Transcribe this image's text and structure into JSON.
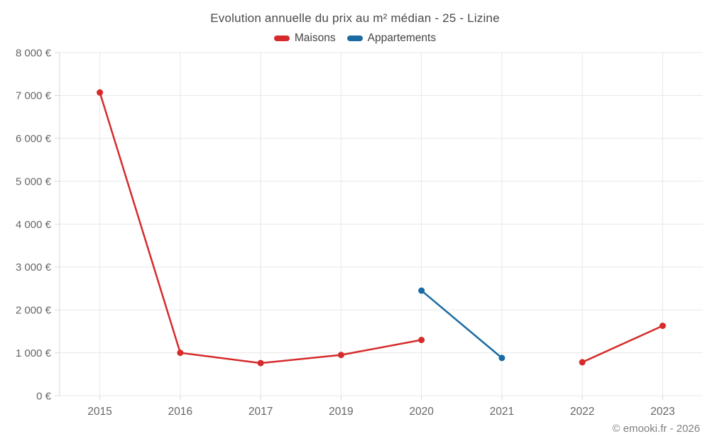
{
  "chart_data": {
    "type": "line",
    "title": "Evolution annuelle du prix au m² médian - 25 - Lizine",
    "categories": [
      "2015",
      "2016",
      "2017",
      "2019",
      "2020",
      "2021",
      "2022",
      "2023"
    ],
    "series": [
      {
        "name": "Maisons",
        "color": "#d62b2b",
        "values": [
          7070,
          1000,
          760,
          950,
          1300,
          null,
          780,
          1630
        ]
      },
      {
        "name": "Appartements",
        "color": "#1a6ba3",
        "values": [
          null,
          null,
          null,
          null,
          2450,
          880,
          null,
          null
        ]
      }
    ],
    "ylim": [
      0,
      8000
    ],
    "y_tick_step": 1000,
    "y_tick_labels": [
      "0 €",
      "1 000 €",
      "2 000 €",
      "3 000 €",
      "4 000 €",
      "5 000 €",
      "6 000 €",
      "7 000 €",
      "8 000 €"
    ],
    "grid": true,
    "legend_position": "top",
    "attribution": "© emooki.fr - 2026"
  },
  "colors": {
    "background": "#ffffff",
    "grid": "#e8e8e8",
    "axis": "#d9d9d9",
    "tick_label": "#666666",
    "title_text": "#4a4a4a",
    "legend_text": "#444444",
    "attribution_text": "#808080"
  }
}
